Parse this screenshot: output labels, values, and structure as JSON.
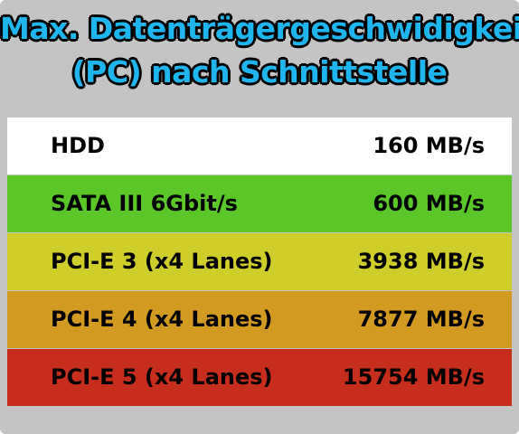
{
  "title": {
    "line1": "Max. Datenträgergeschwidigkeit",
    "line2": "(PC) nach Schnittstelle"
  },
  "rows": [
    {
      "label": "HDD",
      "value": "160 MB/s",
      "color": "#ffffff"
    },
    {
      "label": "SATA III 6Gbit/s",
      "value": "600 MB/s",
      "color": "#5ac628"
    },
    {
      "label": "PCI-E 3 (x4 Lanes)",
      "value": "3938 MB/s",
      "color": "#cfcd29"
    },
    {
      "label": "PCI-E 4 (x4 Lanes)",
      "value": "7877 MB/s",
      "color": "#d39a22"
    },
    {
      "label": "PCI-E 5 (x4 Lanes)",
      "value": "15754 MB/s",
      "color": "#c72d1d"
    }
  ],
  "colors": {
    "background": "#c4c4c4",
    "title": "#1fb6f0",
    "title_outline": "#000000"
  }
}
